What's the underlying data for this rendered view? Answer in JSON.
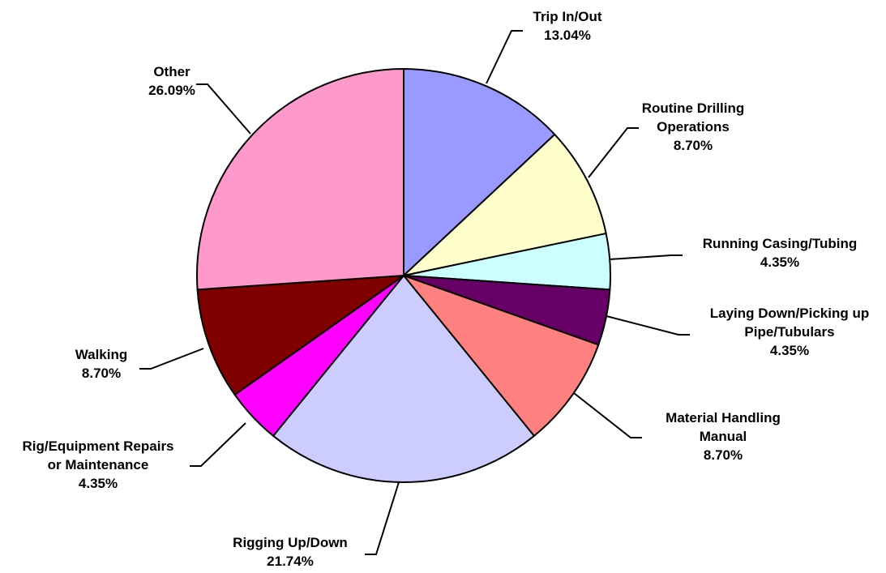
{
  "chart_data": {
    "type": "pie",
    "start_angle_deg": 0,
    "direction": "clockwise",
    "slices": [
      {
        "name": "Trip In/Out",
        "label_lines": [
          "Trip In/Out"
        ],
        "percent_label": "13.04%",
        "value": 13.04,
        "color": "#9999ff"
      },
      {
        "name": "Routine Drilling Operations",
        "label_lines": [
          "Routine Drilling",
          "Operations"
        ],
        "percent_label": "8.70%",
        "value": 8.7,
        "color": "#ffffcc"
      },
      {
        "name": "Running Casing/Tubing",
        "label_lines": [
          "Running Casing/Tubing"
        ],
        "percent_label": "4.35%",
        "value": 4.35,
        "color": "#ccffff"
      },
      {
        "name": "Laying Down/Picking up Pipe/Tubulars",
        "label_lines": [
          "Laying Down/Picking up",
          "Pipe/Tubulars"
        ],
        "percent_label": "4.35%",
        "value": 4.35,
        "color": "#660066"
      },
      {
        "name": "Material Handling Manual",
        "label_lines": [
          "Material Handling",
          "Manual"
        ],
        "percent_label": "8.70%",
        "value": 8.7,
        "color": "#ff8080"
      },
      {
        "name": "Rigging Up/Down",
        "label_lines": [
          "Rigging Up/Down"
        ],
        "percent_label": "21.74%",
        "value": 21.74,
        "color": "#ccccff"
      },
      {
        "name": "Rig/Equipment Repairs or Maintenance",
        "label_lines": [
          "Rig/Equipment Repairs",
          "or Maintenance"
        ],
        "percent_label": "4.35%",
        "value": 4.35,
        "color": "#ff00ff"
      },
      {
        "name": "Walking",
        "label_lines": [
          "Walking"
        ],
        "percent_label": "8.70%",
        "value": 8.7,
        "color": "#800000"
      },
      {
        "name": "Other",
        "label_lines": [
          "Other"
        ],
        "percent_label": "26.09%",
        "value": 26.09,
        "color": "#ff99cc"
      }
    ]
  }
}
